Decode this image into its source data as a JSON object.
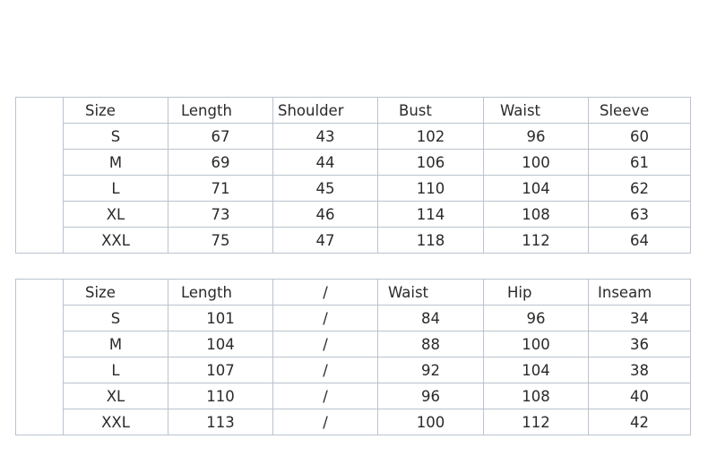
{
  "tables": [
    {
      "headers": [
        "Size",
        "Length",
        "Shoulder",
        "Bust",
        "Waist",
        "Sleeve"
      ],
      "rows": [
        [
          "S",
          "67",
          "43",
          "102",
          "96",
          "60"
        ],
        [
          "M",
          "69",
          "44",
          "106",
          "100",
          "61"
        ],
        [
          "L",
          "71",
          "45",
          "110",
          "104",
          "62"
        ],
        [
          "XL",
          "73",
          "46",
          "114",
          "108",
          "63"
        ],
        [
          "XXL",
          "75",
          "47",
          "118",
          "112",
          "64"
        ]
      ]
    },
    {
      "headers": [
        "Size",
        "Length",
        "/",
        "Waist",
        "Hip",
        "Inseam"
      ],
      "rows": [
        [
          "S",
          "101",
          "/",
          "84",
          "96",
          "34"
        ],
        [
          "M",
          "104",
          "/",
          "88",
          "100",
          "36"
        ],
        [
          "L",
          "107",
          "/",
          "92",
          "104",
          "38"
        ],
        [
          "XL",
          "110",
          "/",
          "96",
          "108",
          "40"
        ],
        [
          "XXL",
          "113",
          "/",
          "100",
          "112",
          "42"
        ]
      ]
    }
  ],
  "colors": {
    "border": "#b9c3cf",
    "text": "#2a2a2a"
  }
}
